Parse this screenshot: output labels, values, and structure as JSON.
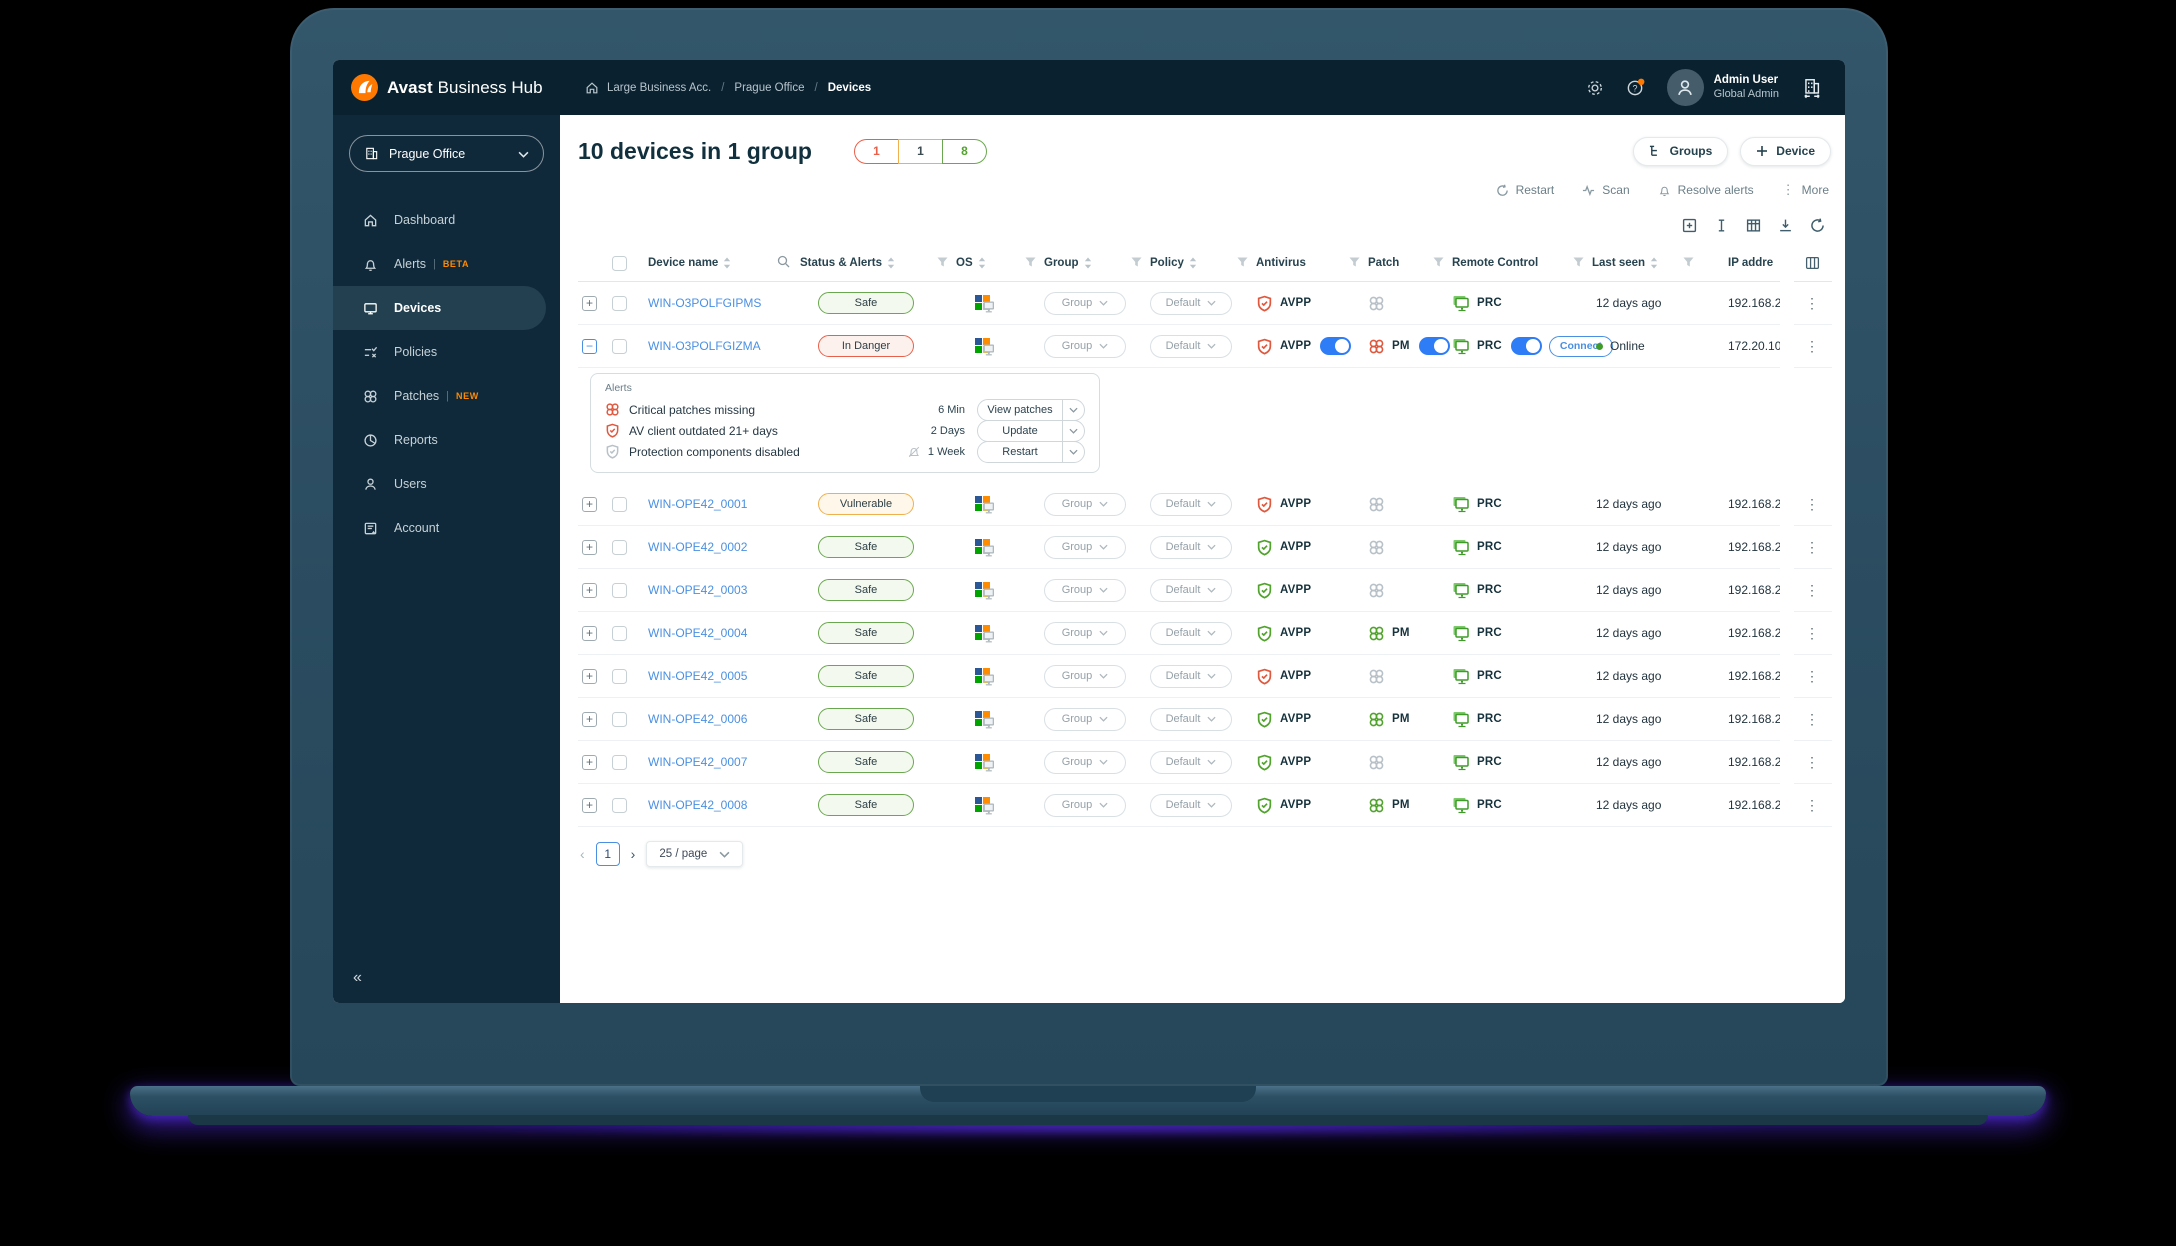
{
  "topbar": {
    "brand_bold": "Avast",
    "brand_rest": "Business Hub",
    "breadcrumb": {
      "items": [
        "Large Business Acc.",
        "Prague Office",
        "Devices"
      ]
    },
    "user": {
      "name": "Admin User",
      "role": "Global Admin"
    }
  },
  "sidebar": {
    "org_selector": "Prague Office",
    "items": [
      {
        "label": "Dashboard",
        "icon": "home-icon",
        "badge": "",
        "active": false
      },
      {
        "label": "Alerts",
        "icon": "bell-icon",
        "badge": "BETA",
        "active": false
      },
      {
        "label": "Devices",
        "icon": "monitor-icon",
        "badge": "",
        "active": true
      },
      {
        "label": "Policies",
        "icon": "policies-icon",
        "badge": "",
        "active": false
      },
      {
        "label": "Patches",
        "icon": "patches-icon",
        "badge": "NEW",
        "active": false
      },
      {
        "label": "Reports",
        "icon": "reports-icon",
        "badge": "",
        "active": false
      },
      {
        "label": "Users",
        "icon": "users-icon",
        "badge": "",
        "active": false
      },
      {
        "label": "Account",
        "icon": "account-icon",
        "badge": "",
        "active": false
      }
    ],
    "collapse_glyph": "«"
  },
  "header": {
    "title": "10 devices in 1 group",
    "counts": [
      {
        "value": "1",
        "color": "#e8604a",
        "meaning": "in-danger"
      },
      {
        "value": "1",
        "color": "#f0b04e",
        "meaning": "vulnerable"
      },
      {
        "value": "8",
        "color": "#6aa84f",
        "meaning": "safe"
      }
    ],
    "groups_button": "Groups",
    "device_button": "Device"
  },
  "toolbar": {
    "actions": [
      "Restart",
      "Scan",
      "Resolve alerts",
      "More"
    ]
  },
  "table": {
    "columns": [
      "Device name",
      "Status & Alerts",
      "OS",
      "Group",
      "Policy",
      "Antivirus",
      "Patch",
      "Remote Control",
      "Last seen",
      "IP addre"
    ],
    "group_dropdown": "Group",
    "policy_dropdown": "Default",
    "rows": [
      {
        "name": "WIN-O3POLFGIPMS",
        "status": "Safe",
        "status_type": "safe",
        "group": "Group",
        "policy": "Default",
        "av": "AVPP",
        "av_color": "red",
        "av_toggle": false,
        "patch_state": "off",
        "patch": "",
        "patch_toggle": false,
        "rc": "PRC",
        "rc_toggle": false,
        "connect": false,
        "online": false,
        "last_seen": "12 days ago",
        "ip": "192.168.2",
        "expanded": false
      },
      {
        "name": "WIN-O3POLFGIZMA",
        "status": "In Danger",
        "status_type": "danger",
        "group": "Group",
        "policy": "Default",
        "av": "AVPP",
        "av_color": "red",
        "av_toggle": true,
        "patch_state": "red",
        "patch": "PM",
        "patch_toggle": true,
        "rc": "PRC",
        "rc_toggle": true,
        "connect": true,
        "online": true,
        "last_seen": "Online",
        "ip": "172.20.10",
        "expanded": true
      },
      {
        "name": "WIN-OPE42_0001",
        "status": "Vulnerable",
        "status_type": "vuln",
        "group": "Group",
        "policy": "Default",
        "av": "AVPP",
        "av_color": "red",
        "av_toggle": false,
        "patch_state": "off",
        "patch": "",
        "patch_toggle": false,
        "rc": "PRC",
        "rc_toggle": false,
        "connect": false,
        "online": false,
        "last_seen": "12 days ago",
        "ip": "192.168.2",
        "expanded": false
      },
      {
        "name": "WIN-OPE42_0002",
        "status": "Safe",
        "status_type": "safe",
        "group": "Group",
        "policy": "Default",
        "av": "AVPP",
        "av_color": "green",
        "av_toggle": false,
        "patch_state": "off",
        "patch": "",
        "patch_toggle": false,
        "rc": "PRC",
        "rc_toggle": false,
        "connect": false,
        "online": false,
        "last_seen": "12 days ago",
        "ip": "192.168.2",
        "expanded": false
      },
      {
        "name": "WIN-OPE42_0003",
        "status": "Safe",
        "status_type": "safe",
        "group": "Group",
        "policy": "Default",
        "av": "AVPP",
        "av_color": "green",
        "av_toggle": false,
        "patch_state": "off",
        "patch": "",
        "patch_toggle": false,
        "rc": "PRC",
        "rc_toggle": false,
        "connect": false,
        "online": false,
        "last_seen": "12 days ago",
        "ip": "192.168.2",
        "expanded": false
      },
      {
        "name": "WIN-OPE42_0004",
        "status": "Safe",
        "status_type": "safe",
        "group": "Group",
        "policy": "Default",
        "av": "AVPP",
        "av_color": "green",
        "av_toggle": false,
        "patch_state": "green",
        "patch": "PM",
        "patch_toggle": false,
        "rc": "PRC",
        "rc_toggle": false,
        "connect": false,
        "online": false,
        "last_seen": "12 days ago",
        "ip": "192.168.2",
        "expanded": false
      },
      {
        "name": "WIN-OPE42_0005",
        "status": "Safe",
        "status_type": "safe",
        "group": "Group",
        "policy": "Default",
        "av": "AVPP",
        "av_color": "red",
        "av_toggle": false,
        "patch_state": "off",
        "patch": "",
        "patch_toggle": false,
        "rc": "PRC",
        "rc_toggle": false,
        "connect": false,
        "online": false,
        "last_seen": "12 days ago",
        "ip": "192.168.2",
        "expanded": false
      },
      {
        "name": "WIN-OPE42_0006",
        "status": "Safe",
        "status_type": "safe",
        "group": "Group",
        "policy": "Default",
        "av": "AVPP",
        "av_color": "green",
        "av_toggle": false,
        "patch_state": "green",
        "patch": "PM",
        "patch_toggle": false,
        "rc": "PRC",
        "rc_toggle": false,
        "connect": false,
        "online": false,
        "last_seen": "12 days ago",
        "ip": "192.168.2",
        "expanded": false
      },
      {
        "name": "WIN-OPE42_0007",
        "status": "Safe",
        "status_type": "safe",
        "group": "Group",
        "policy": "Default",
        "av": "AVPP",
        "av_color": "green",
        "av_toggle": false,
        "patch_state": "off",
        "patch": "",
        "patch_toggle": false,
        "rc": "PRC",
        "rc_toggle": false,
        "connect": false,
        "online": false,
        "last_seen": "12 days ago",
        "ip": "192.168.2",
        "expanded": false
      },
      {
        "name": "WIN-OPE42_0008",
        "status": "Safe",
        "status_type": "safe",
        "group": "Group",
        "policy": "Default",
        "av": "AVPP",
        "av_color": "green",
        "av_toggle": false,
        "patch_state": "green",
        "patch": "PM",
        "patch_toggle": false,
        "rc": "PRC",
        "rc_toggle": false,
        "connect": false,
        "online": false,
        "last_seen": "12 days ago",
        "ip": "192.168.2",
        "expanded": false
      }
    ]
  },
  "alerts_panel": {
    "title": "Alerts",
    "items": [
      {
        "icon": "patch-red-icon",
        "text": "Critical patches missing",
        "age": "6 Min",
        "action": "View patches",
        "muted_bell": false
      },
      {
        "icon": "shield-red-icon",
        "text": "AV client outdated 21+ days",
        "age": "2 Days",
        "action": "Update",
        "muted_bell": false
      },
      {
        "icon": "shield-gray-icon",
        "text": "Protection components disabled",
        "age": "1 Week",
        "action": "Restart",
        "muted_bell": true
      }
    ]
  },
  "pagination": {
    "page": "1",
    "per_page": "25 / page"
  },
  "colors": {
    "accent_orange": "#ff7800",
    "link_blue": "#4a90e2",
    "toggle_blue": "#2e7cf6",
    "safe_green": "#6aa84f",
    "danger_red": "#e8604a",
    "vulnerable_amber": "#f0b04e"
  }
}
